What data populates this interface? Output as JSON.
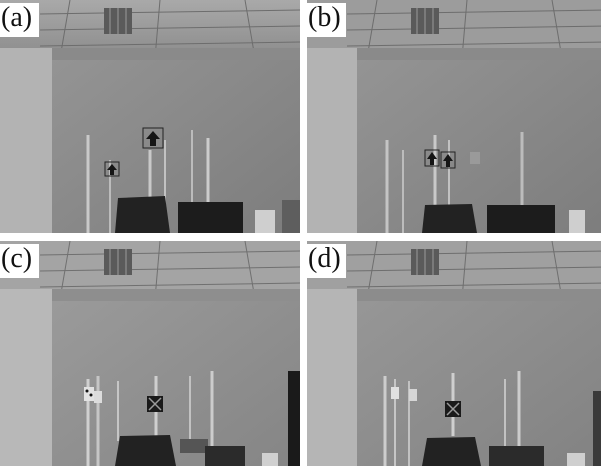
{
  "figure": {
    "panels": [
      {
        "label": "(a)",
        "marker": "arrow",
        "variant": "boxed-arrows-pair-1"
      },
      {
        "label": "(b)",
        "marker": "arrow",
        "variant": "boxed-arrows-pair-2"
      },
      {
        "label": "(c)",
        "marker": "x-target",
        "variant": "x-target-1"
      },
      {
        "label": "(d)",
        "marker": "x-target",
        "variant": "x-target-2"
      }
    ]
  }
}
